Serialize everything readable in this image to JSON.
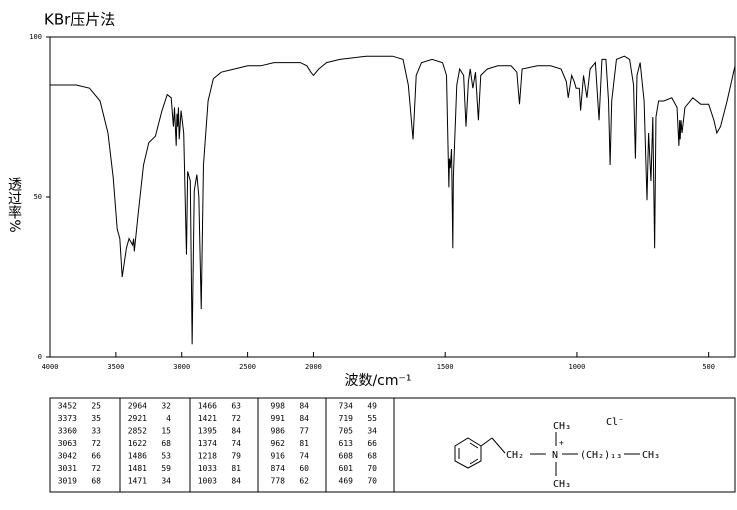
{
  "chart_data": {
    "type": "line",
    "title": "KBr压片法",
    "y_label": "透过率%",
    "x_label": "波数/cm⁻¹",
    "xlim": [
      4000,
      400
    ],
    "x_scale_break": 2000,
    "ylim": [
      0,
      100
    ],
    "xticks": [
      4000,
      3500,
      3000,
      2500,
      2000,
      1500,
      1000,
      500
    ],
    "yticks": [
      0,
      50,
      100
    ],
    "x": [
      4000,
      3900,
      3800,
      3700,
      3620,
      3560,
      3520,
      3490,
      3470,
      3452,
      3420,
      3400,
      3373,
      3365,
      3360,
      3330,
      3290,
      3250,
      3200,
      3150,
      3110,
      3080,
      3063,
      3055,
      3042,
      3036,
      3031,
      3025,
      3019,
      3005,
      2985,
      2964,
      2955,
      2935,
      2921,
      2905,
      2885,
      2870,
      2852,
      2835,
      2800,
      2760,
      2700,
      2600,
      2500,
      2400,
      2300,
      2200,
      2100,
      2050,
      2020,
      2000,
      1980,
      1950,
      1900,
      1800,
      1700,
      1660,
      1640,
      1622,
      1610,
      1590,
      1550,
      1510,
      1495,
      1486,
      1484,
      1481,
      1476,
      1471,
      1469,
      1466,
      1456,
      1445,
      1430,
      1421,
      1412,
      1405,
      1395,
      1385,
      1374,
      1365,
      1340,
      1300,
      1250,
      1228,
      1218,
      1208,
      1150,
      1100,
      1060,
      1040,
      1033,
      1020,
      1010,
      1003,
      998,
      991,
      986,
      975,
      962,
      950,
      930,
      916,
      905,
      890,
      880,
      874,
      868,
      850,
      820,
      800,
      785,
      778,
      772,
      760,
      745,
      734,
      728,
      719,
      712,
      705,
      700,
      690,
      670,
      640,
      620,
      613,
      610,
      608,
      605,
      601,
      590,
      560,
      530,
      500,
      480,
      469,
      455,
      430,
      400
    ],
    "series": [
      {
        "color": "#000000",
        "values": [
          85,
          85,
          85,
          84,
          80,
          70,
          56,
          40,
          37,
          25,
          34,
          37,
          35,
          37,
          33,
          45,
          60,
          67,
          69,
          77,
          82,
          81,
          72,
          78,
          66,
          76,
          72,
          78,
          68,
          77,
          70,
          32,
          58,
          55,
          4,
          52,
          57,
          50,
          15,
          60,
          80,
          87,
          89,
          90,
          91,
          91,
          92,
          92,
          92,
          91,
          89,
          88,
          90,
          92,
          93,
          94,
          94,
          93,
          85,
          68,
          88,
          92,
          93,
          92,
          88,
          53,
          62,
          59,
          65,
          34,
          56,
          63,
          85,
          90,
          88,
          72,
          86,
          90,
          84,
          89,
          74,
          88,
          90,
          91,
          91,
          89,
          79,
          90,
          91,
          91,
          90,
          86,
          81,
          88,
          86,
          84,
          84,
          84,
          77,
          88,
          81,
          90,
          92,
          74,
          93,
          93,
          80,
          60,
          80,
          93,
          94,
          93,
          85,
          62,
          88,
          92,
          80,
          49,
          70,
          55,
          75,
          34,
          75,
          80,
          80,
          81,
          78,
          66,
          74,
          68,
          74,
          70,
          78,
          81,
          79,
          79,
          74,
          70,
          72,
          80,
          91
        ]
      }
    ],
    "peaks": {
      "wavenumber": [
        3452,
        3373,
        3360,
        3063,
        3042,
        3031,
        3019,
        2964,
        2921,
        2852,
        1622,
        1486,
        1481,
        1471,
        1466,
        1421,
        1395,
        1374,
        1218,
        1033,
        1003,
        998,
        991,
        986,
        962,
        916,
        874,
        778,
        734,
        719,
        705,
        613,
        608,
        601,
        469
      ],
      "transmittance": [
        25,
        35,
        33,
        72,
        66,
        72,
        68,
        32,
        4,
        15,
        68,
        53,
        59,
        34,
        63,
        72,
        84,
        74,
        79,
        81,
        84,
        84,
        84,
        77,
        81,
        74,
        60,
        62,
        49,
        55,
        34,
        66,
        68,
        70,
        70
      ]
    }
  },
  "structure": {
    "methyl_top": "CH₃",
    "anion": "Cl⁻",
    "charge": "+",
    "methylene": "CH₂",
    "nitrogen": "N",
    "chain": "(CH₂)₁₃",
    "chain_end": "CH₃",
    "methyl_bottom": "CH₃"
  }
}
